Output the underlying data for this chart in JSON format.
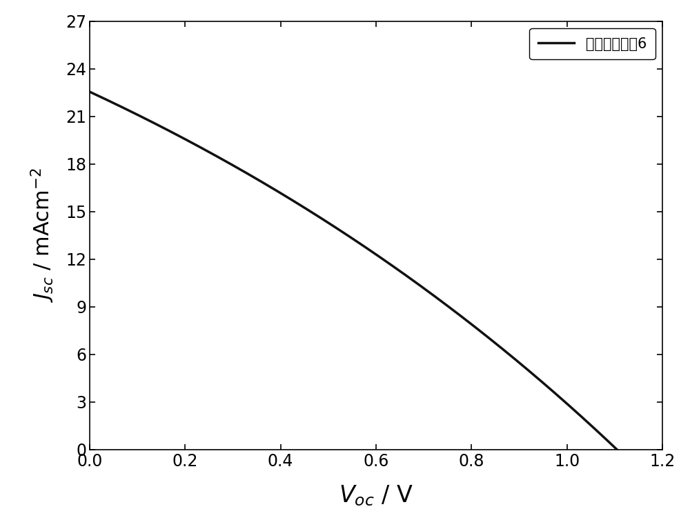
{
  "Jsc": 22.55,
  "Voc": 1.105,
  "xlim": [
    0.0,
    1.2
  ],
  "ylim": [
    0.0,
    27
  ],
  "xticks": [
    0.0,
    0.2,
    0.4,
    0.6,
    0.8,
    1.0,
    1.2
  ],
  "yticks": [
    0,
    3,
    6,
    9,
    12,
    15,
    18,
    21,
    24,
    27
  ],
  "xlabel_main": "V",
  "xlabel_sub": "oc",
  "ylabel_main": "J",
  "ylabel_sub": "sc",
  "ylabel_unit": " / mAcm",
  "legend_label": "空穴传输材料6",
  "line_color": "#111111",
  "line_width": 2.5,
  "background_color": "#ffffff",
  "xlabel_fontsize": 24,
  "ylabel_fontsize": 22,
  "tick_fontsize": 17,
  "legend_fontsize": 15,
  "n_ideality": 60
}
